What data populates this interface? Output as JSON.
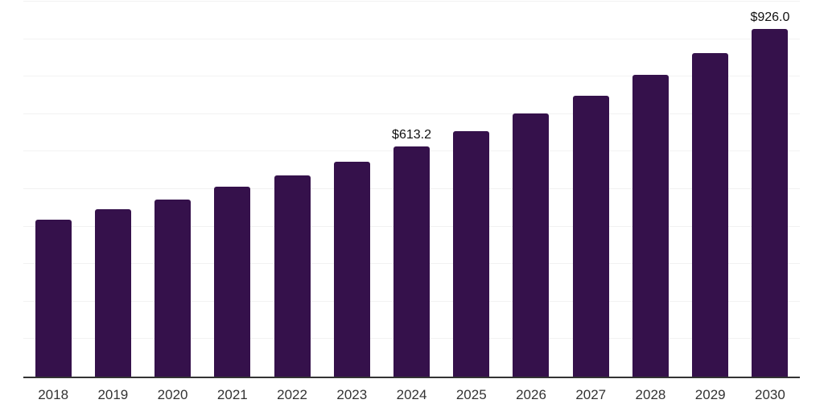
{
  "chart_data": {
    "type": "bar",
    "title": "",
    "categories": [
      "2018",
      "2019",
      "2020",
      "2021",
      "2022",
      "2023",
      "2024",
      "2025",
      "2026",
      "2027",
      "2028",
      "2029",
      "2030"
    ],
    "values": [
      419.0,
      445.5,
      472.5,
      505.5,
      536.5,
      573.5,
      613.2,
      655.5,
      701.0,
      749.5,
      805.0,
      863.0,
      926.0
    ],
    "data_labels": [
      "",
      "",
      "",
      "",
      "",
      "",
      "$613.2",
      "",
      "",
      "",
      "",
      "",
      "$926.0"
    ],
    "xlabel": "",
    "ylabel": "",
    "ylim": [
      0,
      1000
    ],
    "gridline_step": 100,
    "grid": "horizontal",
    "legend": "none",
    "y_tick_labels": "none",
    "colors": {
      "bar": "#35114B",
      "gridline": "#f2f2f2",
      "axis_line": "#333333",
      "tick_label": "#333333",
      "data_label": "#111111",
      "background": "#ffffff"
    }
  }
}
